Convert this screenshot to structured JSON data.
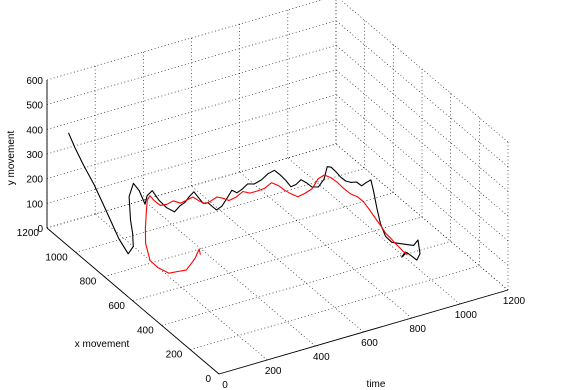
{
  "chart_data": {
    "type": "line",
    "title": "",
    "view": "3d",
    "xlabel": "time",
    "ylabel": "x movement",
    "zlabel": "y movement",
    "xlim": [
      0,
      1200
    ],
    "ylim": [
      0,
      1200
    ],
    "zlim": [
      0,
      600
    ],
    "x_ticks": [
      "0",
      "200",
      "400",
      "600",
      "800",
      "1000",
      "1200"
    ],
    "y_ticks": [
      "0",
      "200",
      "400",
      "600",
      "800",
      "1000",
      "1200"
    ],
    "z_ticks": [
      "0",
      "100",
      "200",
      "300",
      "400",
      "500",
      "600"
    ],
    "grid": true,
    "series": [
      {
        "color": "#000000",
        "points": [
          [
            0,
            1050,
            460
          ],
          [
            20,
            1040,
            400
          ],
          [
            45,
            1020,
            330
          ],
          [
            70,
            990,
            260
          ],
          [
            90,
            960,
            190
          ],
          [
            105,
            930,
            130
          ],
          [
            120,
            900,
            70
          ],
          [
            135,
            860,
            25
          ],
          [
            150,
            850,
            55
          ],
          [
            165,
            880,
            90
          ],
          [
            180,
            920,
            120
          ],
          [
            198,
            960,
            190
          ],
          [
            210,
            950,
            245
          ],
          [
            228,
            940,
            215
          ],
          [
            240,
            935,
            180
          ],
          [
            255,
            945,
            150
          ],
          [
            270,
            955,
            175
          ],
          [
            282,
            940,
            200
          ],
          [
            290,
            905,
            175
          ],
          [
            300,
            870,
            160
          ],
          [
            318,
            845,
            150
          ],
          [
            335,
            835,
            175
          ],
          [
            350,
            825,
            190
          ],
          [
            362,
            815,
            215
          ],
          [
            375,
            805,
            235
          ],
          [
            390,
            795,
            210
          ],
          [
            402,
            785,
            190
          ],
          [
            415,
            775,
            195
          ],
          [
            428,
            770,
            180
          ],
          [
            442,
            760,
            165
          ],
          [
            458,
            750,
            180
          ],
          [
            470,
            735,
            215
          ],
          [
            485,
            725,
            250
          ],
          [
            500,
            715,
            240
          ],
          [
            515,
            705,
            255
          ],
          [
            530,
            690,
            280
          ],
          [
            545,
            670,
            285
          ],
          [
            560,
            645,
            310
          ],
          [
            575,
            625,
            340
          ],
          [
            590,
            605,
            360
          ],
          [
            605,
            590,
            345
          ],
          [
            620,
            575,
            325
          ],
          [
            635,
            565,
            300
          ],
          [
            650,
            555,
            310
          ],
          [
            665,
            545,
            330
          ],
          [
            680,
            530,
            320
          ],
          [
            695,
            520,
            305
          ],
          [
            710,
            500,
            310
          ],
          [
            725,
            485,
            345
          ],
          [
            735,
            480,
            395
          ],
          [
            745,
            470,
            395
          ],
          [
            757,
            455,
            380
          ],
          [
            770,
            445,
            360
          ],
          [
            785,
            435,
            345
          ],
          [
            800,
            425,
            340
          ],
          [
            815,
            410,
            345
          ],
          [
            830,
            400,
            330
          ],
          [
            845,
            390,
            345
          ],
          [
            858,
            382,
            355
          ],
          [
            865,
            375,
            310
          ],
          [
            875,
            368,
            240
          ],
          [
            885,
            360,
            180
          ],
          [
            900,
            350,
            130
          ],
          [
            920,
            340,
            105
          ],
          [
            945,
            325,
            100
          ],
          [
            970,
            312,
            95
          ],
          [
            990,
            305,
            90
          ],
          [
            1005,
            300,
            110
          ],
          [
            1010,
            295,
            55
          ],
          [
            1000,
            300,
            30
          ],
          [
            985,
            310,
            45
          ],
          [
            970,
            320,
            60
          ],
          [
            955,
            330,
            40
          ],
          [
            965,
            320,
            65
          ]
        ]
      },
      {
        "color": "#ff0000",
        "points": [
          [
            0,
            130,
            420
          ],
          [
            25,
            180,
            410
          ],
          [
            55,
            240,
            360
          ],
          [
            80,
            300,
            300
          ],
          [
            102,
            360,
            245
          ],
          [
            120,
            430,
            175
          ],
          [
            138,
            520,
            120
          ],
          [
            150,
            600,
            70
          ],
          [
            163,
            700,
            40
          ],
          [
            178,
            780,
            25
          ],
          [
            195,
            840,
            60
          ],
          [
            212,
            870,
            100
          ],
          [
            225,
            885,
            155
          ],
          [
            238,
            900,
            195
          ],
          [
            252,
            905,
            205
          ],
          [
            265,
            900,
            185
          ],
          [
            280,
            880,
            170
          ],
          [
            295,
            860,
            180
          ],
          [
            310,
            840,
            200
          ],
          [
            328,
            820,
            195
          ],
          [
            345,
            805,
            210
          ],
          [
            362,
            790,
            225
          ],
          [
            380,
            780,
            210
          ],
          [
            398,
            765,
            200
          ],
          [
            415,
            750,
            215
          ],
          [
            432,
            740,
            230
          ],
          [
            450,
            730,
            225
          ],
          [
            470,
            720,
            215
          ],
          [
            490,
            705,
            230
          ],
          [
            510,
            690,
            255
          ],
          [
            530,
            675,
            250
          ],
          [
            550,
            660,
            260
          ],
          [
            570,
            640,
            275
          ],
          [
            590,
            625,
            300
          ],
          [
            610,
            610,
            290
          ],
          [
            630,
            600,
            270
          ],
          [
            650,
            590,
            255
          ],
          [
            670,
            575,
            245
          ],
          [
            690,
            560,
            260
          ],
          [
            710,
            545,
            280
          ],
          [
            730,
            535,
            320
          ],
          [
            750,
            525,
            335
          ],
          [
            770,
            510,
            325
          ],
          [
            790,
            500,
            305
          ],
          [
            810,
            490,
            280
          ],
          [
            830,
            475,
            260
          ],
          [
            850,
            460,
            250
          ],
          [
            868,
            450,
            230
          ],
          [
            885,
            440,
            200
          ],
          [
            900,
            425,
            170
          ],
          [
            915,
            410,
            140
          ],
          [
            930,
            400,
            110
          ],
          [
            945,
            390,
            90
          ],
          [
            958,
            380,
            70
          ],
          [
            970,
            372,
            55
          ],
          [
            980,
            360,
            40
          ],
          [
            990,
            350,
            30
          ]
        ]
      }
    ]
  }
}
